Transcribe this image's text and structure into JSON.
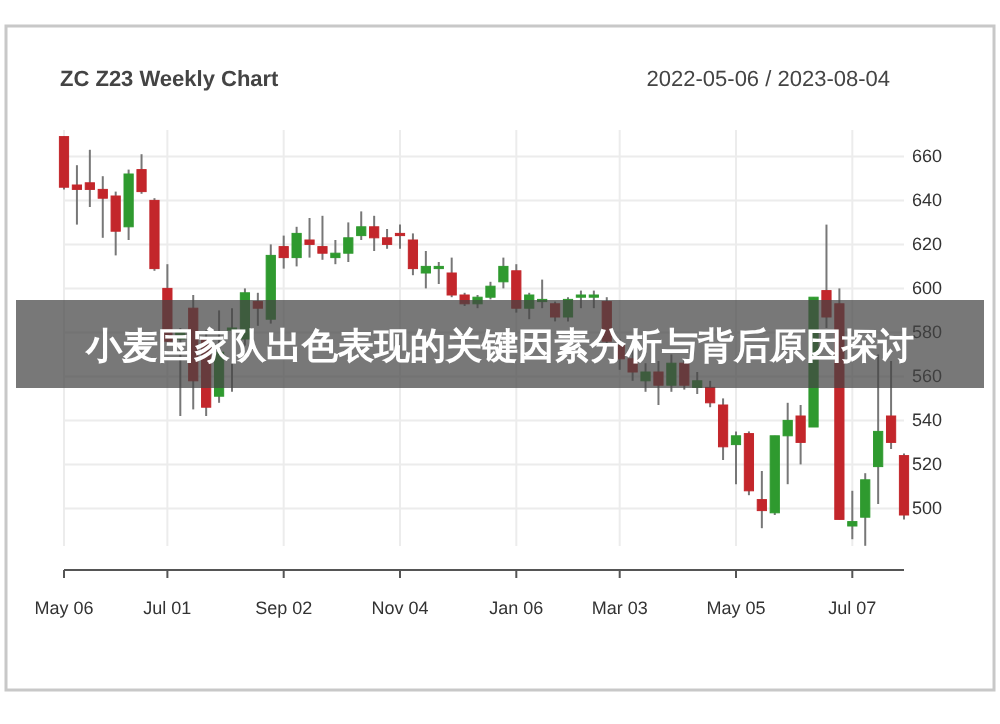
{
  "chart_data": {
    "type": "candlestick",
    "title": "ZC Z23 Weekly Chart",
    "subtitle": "2022-05-06 / 2023-08-04",
    "annotations": [
      "小麦国家队出色表现的关键因素分析与背后原因探讨"
    ],
    "x": [
      "2022-05-06",
      "2022-05-13",
      "2022-05-20",
      "2022-05-27",
      "2022-06-03",
      "2022-06-10",
      "2022-06-17",
      "2022-06-24",
      "2022-07-01",
      "2022-07-08",
      "2022-07-15",
      "2022-07-22",
      "2022-07-29",
      "2022-08-05",
      "2022-08-12",
      "2022-08-19",
      "2022-08-26",
      "2022-09-02",
      "2022-09-09",
      "2022-09-16",
      "2022-09-23",
      "2022-09-30",
      "2022-10-07",
      "2022-10-14",
      "2022-10-21",
      "2022-10-28",
      "2022-11-04",
      "2022-11-11",
      "2022-11-18",
      "2022-11-25",
      "2022-12-02",
      "2022-12-09",
      "2022-12-16",
      "2022-12-23",
      "2022-12-30",
      "2023-01-06",
      "2023-01-13",
      "2023-01-20",
      "2023-01-27",
      "2023-02-03",
      "2023-02-10",
      "2023-02-17",
      "2023-02-24",
      "2023-03-03",
      "2023-03-10",
      "2023-03-17",
      "2023-03-24",
      "2023-03-31",
      "2023-04-07",
      "2023-04-14",
      "2023-04-21",
      "2023-04-28",
      "2023-05-05",
      "2023-05-12",
      "2023-05-19",
      "2023-05-26",
      "2023-06-02",
      "2023-06-09",
      "2023-06-16",
      "2023-06-23",
      "2023-06-30",
      "2023-07-07",
      "2023-07-14",
      "2023-07-21",
      "2023-07-28",
      "2023-08-04"
    ],
    "ohlc": [
      [
        669,
        669,
        645,
        646
      ],
      [
        647,
        656,
        629,
        645
      ],
      [
        648,
        663,
        637,
        645
      ],
      [
        645,
        651,
        623,
        641
      ],
      [
        642,
        644,
        615,
        626
      ],
      [
        628,
        654,
        622,
        652
      ],
      [
        654,
        661,
        643,
        644
      ],
      [
        640,
        641,
        608,
        609
      ],
      [
        600,
        611,
        575,
        576
      ],
      [
        577,
        582,
        542,
        580
      ],
      [
        591,
        597,
        545,
        558
      ],
      [
        577,
        581,
        542,
        546
      ],
      [
        551,
        590,
        548,
        571
      ],
      [
        581,
        591,
        553,
        582
      ],
      [
        577,
        600,
        574,
        598
      ],
      [
        594,
        598,
        583,
        591
      ],
      [
        586,
        620,
        584,
        615
      ],
      [
        619,
        624,
        609,
        614
      ],
      [
        614,
        628,
        610,
        625
      ],
      [
        622,
        632,
        614,
        620
      ],
      [
        619,
        633,
        613,
        616
      ],
      [
        614,
        622,
        611,
        616
      ],
      [
        616,
        630,
        612,
        623
      ],
      [
        624,
        635,
        622,
        628
      ],
      [
        628,
        633,
        617,
        623
      ],
      [
        623,
        627,
        618,
        620
      ],
      [
        625,
        629,
        618,
        624
      ],
      [
        622,
        625,
        606,
        609
      ],
      [
        607,
        617,
        600,
        610
      ],
      [
        609,
        612,
        602,
        610
      ],
      [
        607,
        614,
        596,
        597
      ],
      [
        597,
        598,
        592,
        593
      ],
      [
        593,
        597,
        591,
        596
      ],
      [
        596,
        603,
        595,
        601
      ],
      [
        603,
        614,
        600,
        610
      ],
      [
        608,
        611,
        589,
        591
      ],
      [
        591,
        598,
        586,
        597
      ],
      [
        594,
        604,
        591,
        595
      ],
      [
        593,
        594,
        585,
        587
      ],
      [
        587,
        596,
        585,
        595
      ],
      [
        596,
        599,
        591,
        597
      ],
      [
        596,
        599,
        591,
        597
      ],
      [
        594,
        596,
        574,
        576
      ],
      [
        574,
        577,
        563,
        568
      ],
      [
        568,
        572,
        558,
        562
      ],
      [
        558,
        566,
        553,
        562
      ],
      [
        562,
        567,
        547,
        556
      ],
      [
        556,
        570,
        553,
        566
      ],
      [
        566,
        568,
        554,
        556
      ],
      [
        555,
        562,
        552,
        558
      ],
      [
        555,
        558,
        546,
        548
      ],
      [
        547,
        550,
        522,
        528
      ],
      [
        529,
        535,
        511,
        533
      ],
      [
        534,
        535,
        506,
        508
      ],
      [
        504,
        517,
        491,
        499
      ],
      [
        498,
        533,
        497,
        533
      ],
      [
        533,
        548,
        511,
        540
      ],
      [
        542,
        547,
        520,
        530
      ],
      [
        537,
        596,
        537,
        596
      ],
      [
        599,
        629,
        582,
        587
      ],
      [
        593,
        600,
        495,
        495
      ],
      [
        492,
        508,
        486,
        494
      ],
      [
        496,
        516,
        483,
        513
      ],
      [
        519,
        570,
        502,
        535
      ],
      [
        542,
        567,
        527,
        530
      ],
      [
        524,
        525,
        495,
        497
      ]
    ],
    "xlim": [
      "2022-05-06",
      "2023-08-04"
    ],
    "xticks": [
      {
        "value": "2022-05-06",
        "label": "May 06"
      },
      {
        "value": "2022-07-01",
        "label": "Jul 01"
      },
      {
        "value": "2022-09-02",
        "label": "Sep 02"
      },
      {
        "value": "2022-11-04",
        "label": "Nov 04"
      },
      {
        "value": "2023-01-06",
        "label": "Jan 06"
      },
      {
        "value": "2023-03-03",
        "label": "Mar 03"
      },
      {
        "value": "2023-05-05",
        "label": "May 05"
      },
      {
        "value": "2023-07-07",
        "label": "Jul 07"
      }
    ],
    "ylim": [
      472,
      672
    ],
    "yticks": [
      500,
      520,
      540,
      560,
      580,
      600,
      620,
      640,
      660
    ],
    "grid": true
  }
}
